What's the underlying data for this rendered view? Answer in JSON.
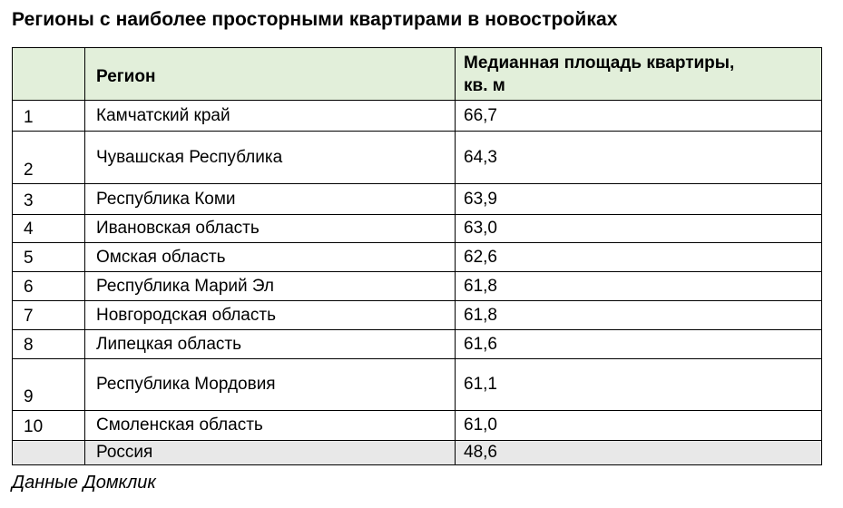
{
  "title": "Регионы с наиболее просторными квартирами в новостройках",
  "table": {
    "header": {
      "rank": "",
      "region": "Регион",
      "value_lines": [
        "Медианная площадь квартиры,",
        "кв. м"
      ]
    },
    "rows": [
      {
        "rank": "1",
        "region": "Камчатский край",
        "value": "66,7"
      },
      {
        "rank": "2",
        "region": "Чувашская Республика",
        "value": "64,3"
      },
      {
        "rank": "3",
        "region": "Республика Коми",
        "value": "63,9"
      },
      {
        "rank": "4",
        "region": "Ивановская область",
        "value": "63,0"
      },
      {
        "rank": "5",
        "region": "Омская область",
        "value": "62,6"
      },
      {
        "rank": "6",
        "region": "Республика Марий Эл",
        "value": "61,8"
      },
      {
        "rank": "7",
        "region": "Новгородская область",
        "value": "61,8"
      },
      {
        "rank": "8",
        "region": "Липецкая область",
        "value": "61,6"
      },
      {
        "rank": "9",
        "region": "Республика Мордовия",
        "value": "61,1"
      },
      {
        "rank": "10",
        "region": "Смоленская область",
        "value": "61,0"
      },
      {
        "rank": "",
        "region": "Россия",
        "value": "48,6"
      }
    ]
  },
  "footer": {
    "source": "Данные Домклик"
  },
  "colors": {
    "header_bg": "#e2efda",
    "summary_row_bg": "#e8e8e8",
    "border": "#000000",
    "text": "#000000"
  },
  "chart_data": {
    "type": "table",
    "title": "Регионы с наиболее просторными квартирами в новостройках",
    "columns": [
      "№",
      "Регион",
      "Медианная площадь квартиры, кв. м"
    ],
    "categories": [
      "Камчатский край",
      "Чувашская Республика",
      "Республика Коми",
      "Ивановская область",
      "Омская область",
      "Республика Марий Эл",
      "Новгородская область",
      "Липецкая область",
      "Республика Мордовия",
      "Смоленская область",
      "Россия"
    ],
    "values": [
      66.7,
      64.3,
      63.9,
      63.0,
      62.6,
      61.8,
      61.8,
      61.6,
      61.1,
      61.0,
      48.6
    ],
    "source": "Данные Домклик"
  }
}
